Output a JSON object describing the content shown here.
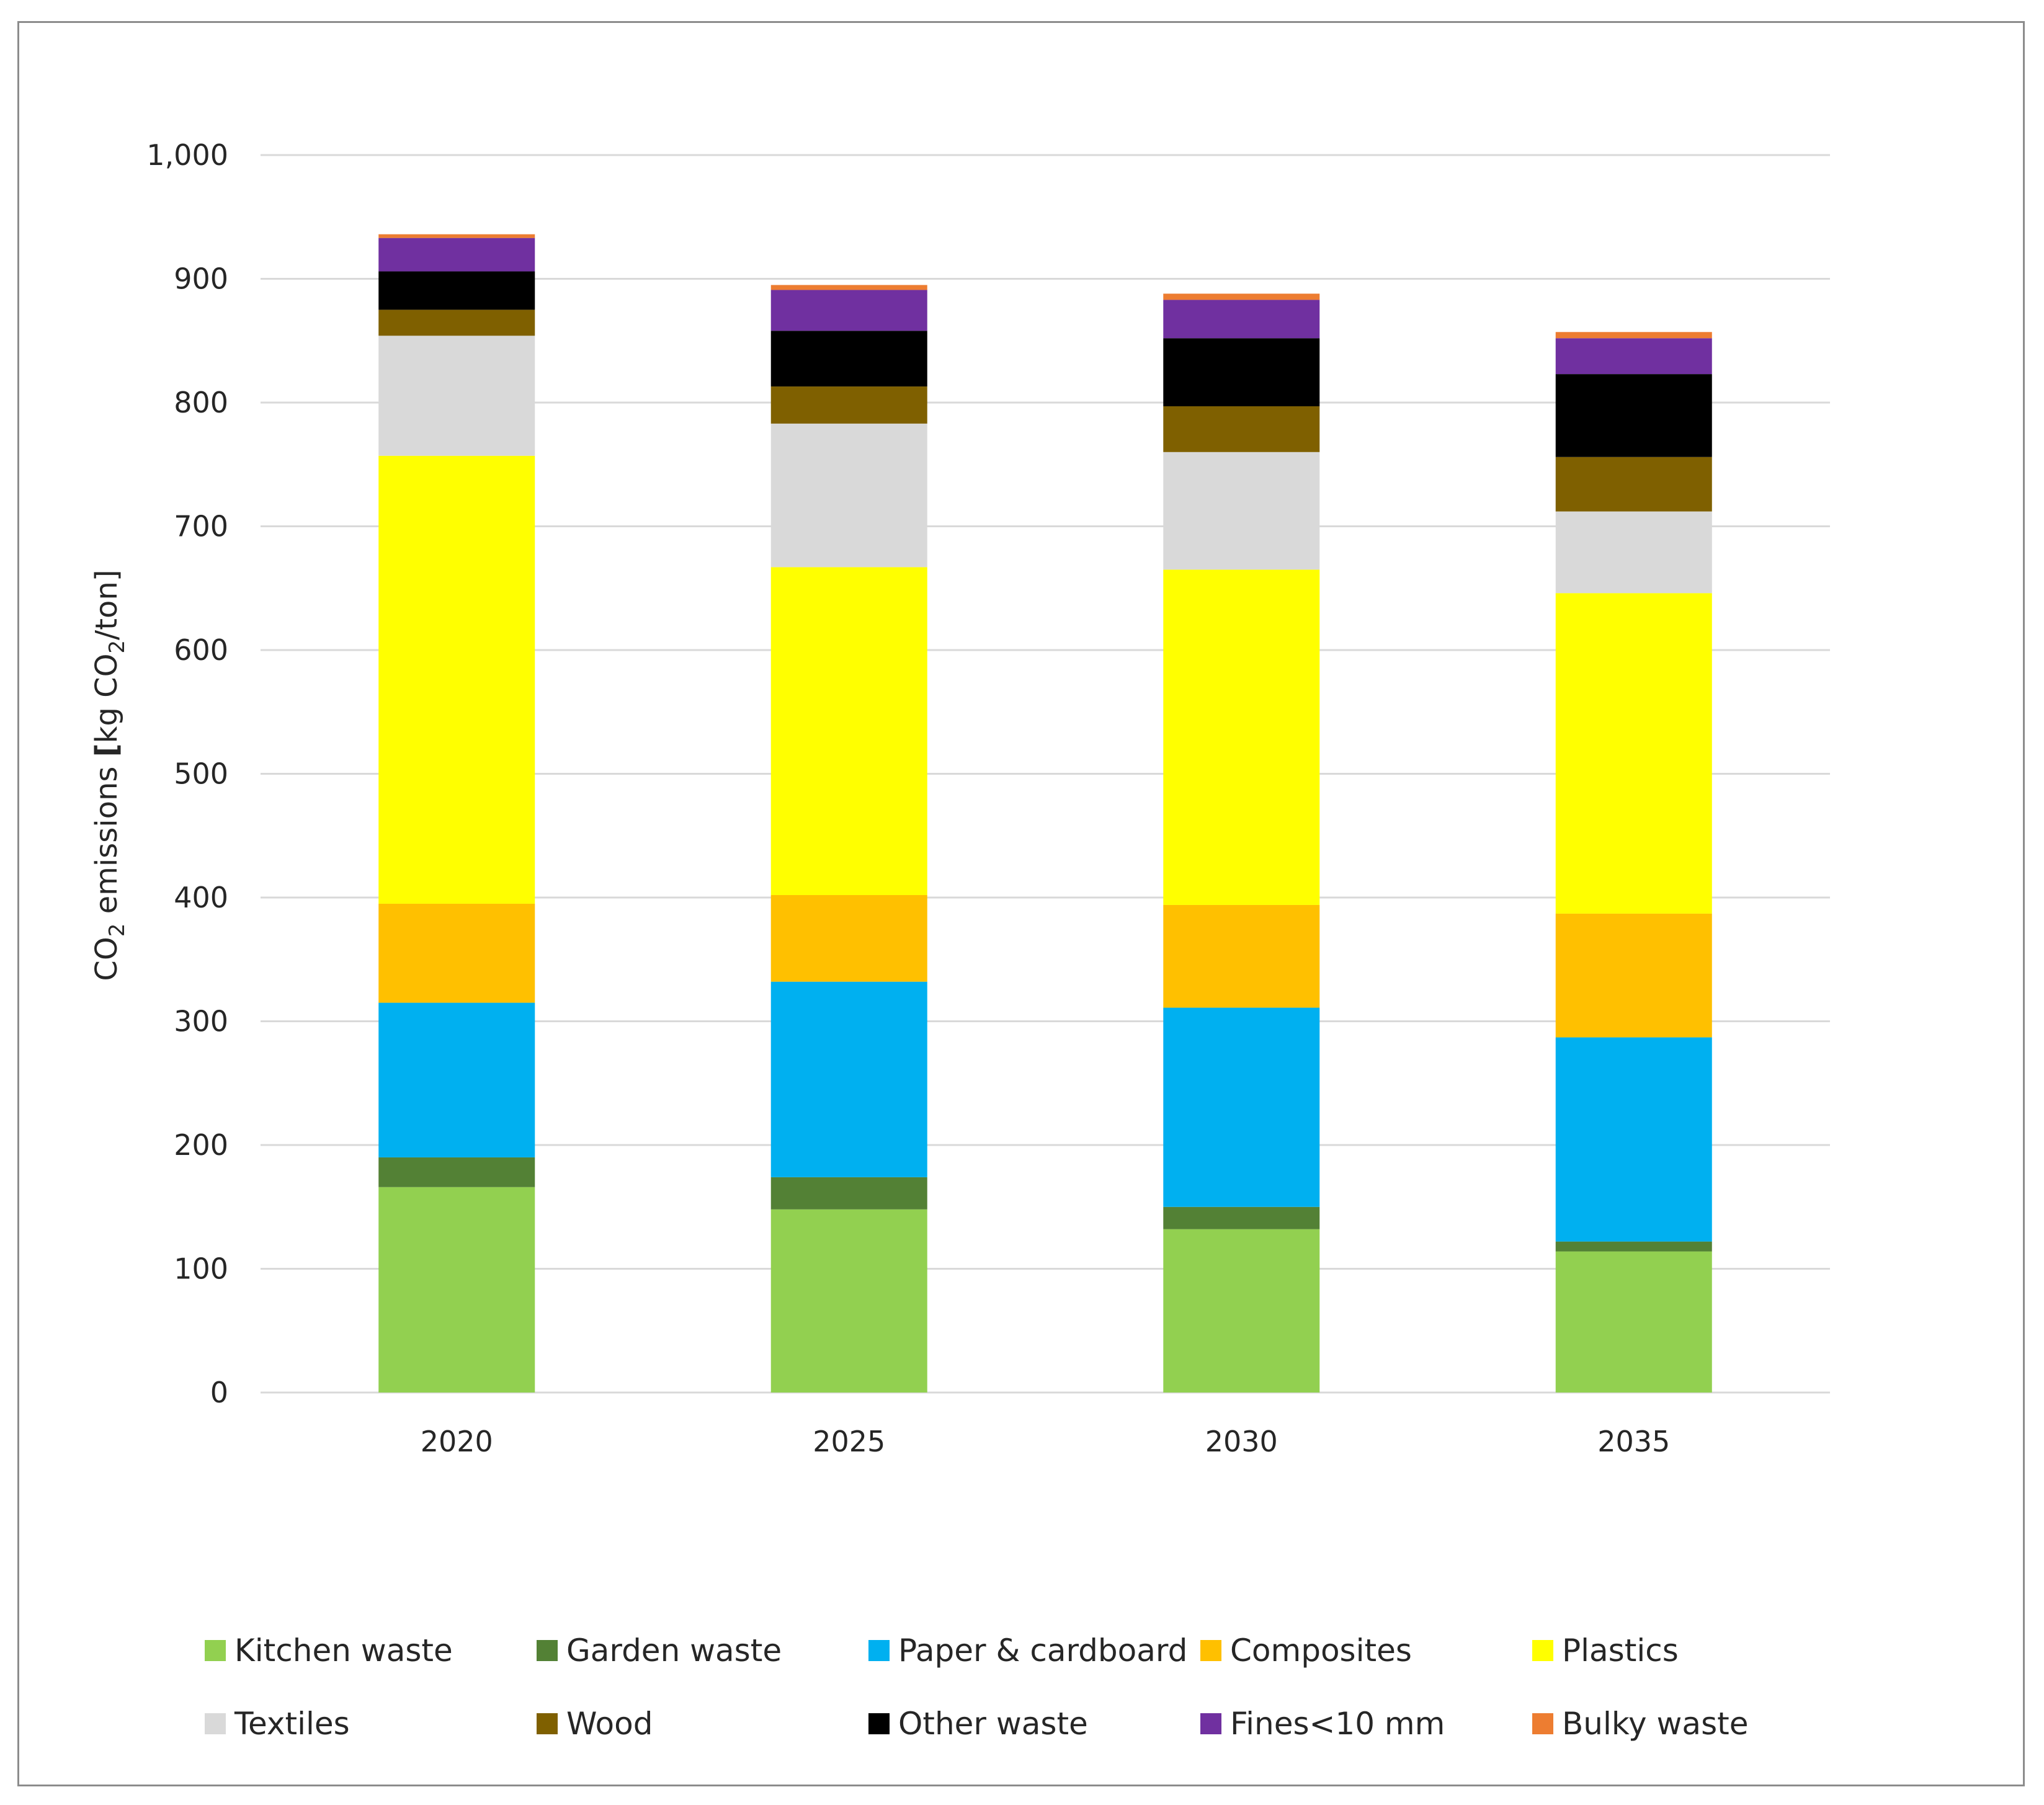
{
  "chart_data": {
    "type": "bar",
    "stacked": true,
    "title": "",
    "xlabel": "",
    "ylabel": {
      "parts": [
        "CO",
        "2",
        " emissions ",
        "[",
        "kg CO",
        "2",
        "/ton",
        "]"
      ]
    },
    "ylim": [
      0,
      1000
    ],
    "yticks": [
      0,
      100,
      200,
      300,
      400,
      500,
      600,
      700,
      800,
      900,
      1000
    ],
    "ytick_labels": [
      "0",
      "100",
      "200",
      "300",
      "400",
      "500",
      "600",
      "700",
      "800",
      "900",
      "1,000"
    ],
    "grid": true,
    "legend_position": "bottom",
    "categories": [
      "2020",
      "2025",
      "2030",
      "2035"
    ],
    "series": [
      {
        "name": "Kitchen waste",
        "color": "#92d050",
        "values": [
          166,
          148,
          132,
          114
        ]
      },
      {
        "name": "Garden waste",
        "color": "#538135",
        "values": [
          24,
          26,
          18,
          8
        ]
      },
      {
        "name": "Paper & cardboard",
        "color": "#00b0f0",
        "values": [
          125,
          158,
          161,
          165
        ]
      },
      {
        "name": "Composites",
        "color": "#ffc000",
        "values": [
          80,
          70,
          83,
          100
        ]
      },
      {
        "name": "Plastics",
        "color": "#ffff00",
        "values": [
          362,
          265,
          271,
          259
        ]
      },
      {
        "name": "Textiles",
        "color": "#d9d9d9",
        "values": [
          97,
          116,
          95,
          66
        ]
      },
      {
        "name": "Wood",
        "color": "#7f6000",
        "values": [
          21,
          30,
          37,
          44
        ]
      },
      {
        "name": "Other waste",
        "color": "#000000",
        "values": [
          31,
          45,
          55,
          67
        ]
      },
      {
        "name": "Fines<10 mm",
        "color": "#7030a0",
        "values": [
          27,
          33,
          31,
          29
        ]
      },
      {
        "name": "Bulky waste",
        "color": "#ed7d31",
        "values": [
          3,
          4,
          5,
          5
        ]
      }
    ]
  }
}
